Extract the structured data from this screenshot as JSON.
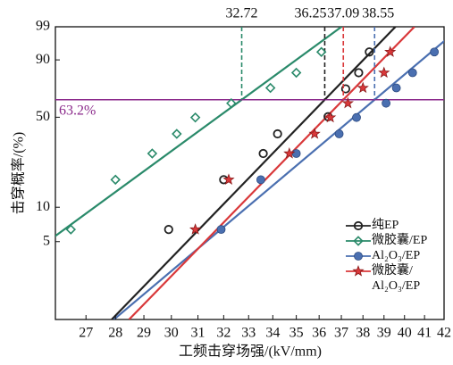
{
  "chart_data": {
    "type": "weibull",
    "xlabel": "工频击穿场强/(kV/mm)",
    "ylabel": "击穿概率/(%)",
    "xscale": "log",
    "yscale": "weibull",
    "xlim": [
      26,
      42
    ],
    "xticks": [
      27,
      28,
      29,
      30,
      31,
      32,
      33,
      34,
      35,
      36,
      37,
      38,
      39,
      40,
      41,
      42
    ],
    "ylim": [
      1,
      99
    ],
    "yticks": [
      5,
      10,
      50,
      90,
      99
    ],
    "reference_line": {
      "value": 63.2,
      "label": "63.2%",
      "color": "#8b2a8b"
    },
    "series": [
      {
        "name": "纯EP",
        "color": "#222222",
        "marker": "open-circle",
        "scale": 36.25,
        "shape": 17.5,
        "x": [
          29.9,
          32.0,
          33.6,
          34.2,
          36.4,
          37.2,
          37.8,
          38.3
        ],
        "values": [
          6.4,
          17.1,
          27.7,
          38.7,
          50.4,
          71.5,
          82.8,
          93.4
        ]
      },
      {
        "name": "微胶囊/EP",
        "color": "#2a8a6a",
        "marker": "open-diamond",
        "scale": 32.72,
        "shape": 12.4,
        "x": [
          26.5,
          28.0,
          29.3,
          30.2,
          30.9,
          32.3,
          33.9,
          35.0,
          36.1
        ],
        "values": [
          6.4,
          17.1,
          27.7,
          38.7,
          49.8,
          60.5,
          72.2,
          82.8,
          93.4
        ]
      },
      {
        "name": "Al₂O₃/EP",
        "color": "#4a6fb0",
        "marker": "filled-circle",
        "scale": 38.55,
        "shape": 14.3,
        "x": [
          31.9,
          33.5,
          35.0,
          36.9,
          37.7,
          39.1,
          39.6,
          40.4,
          41.5
        ],
        "values": [
          6.4,
          17.1,
          27.7,
          38.7,
          49.8,
          60.5,
          72.2,
          82.8,
          93.4
        ]
      },
      {
        "name": "微胶囊/\nAl₂O₃/EP",
        "color": "#d9383a",
        "marker": "star",
        "scale": 37.09,
        "shape": 17.4,
        "x": [
          30.9,
          32.2,
          34.7,
          35.8,
          36.5,
          37.3,
          38.0,
          39.0,
          39.3
        ],
        "values": [
          6.4,
          17.1,
          27.7,
          38.7,
          49.8,
          60.5,
          72.2,
          82.8,
          93.4
        ]
      }
    ]
  }
}
